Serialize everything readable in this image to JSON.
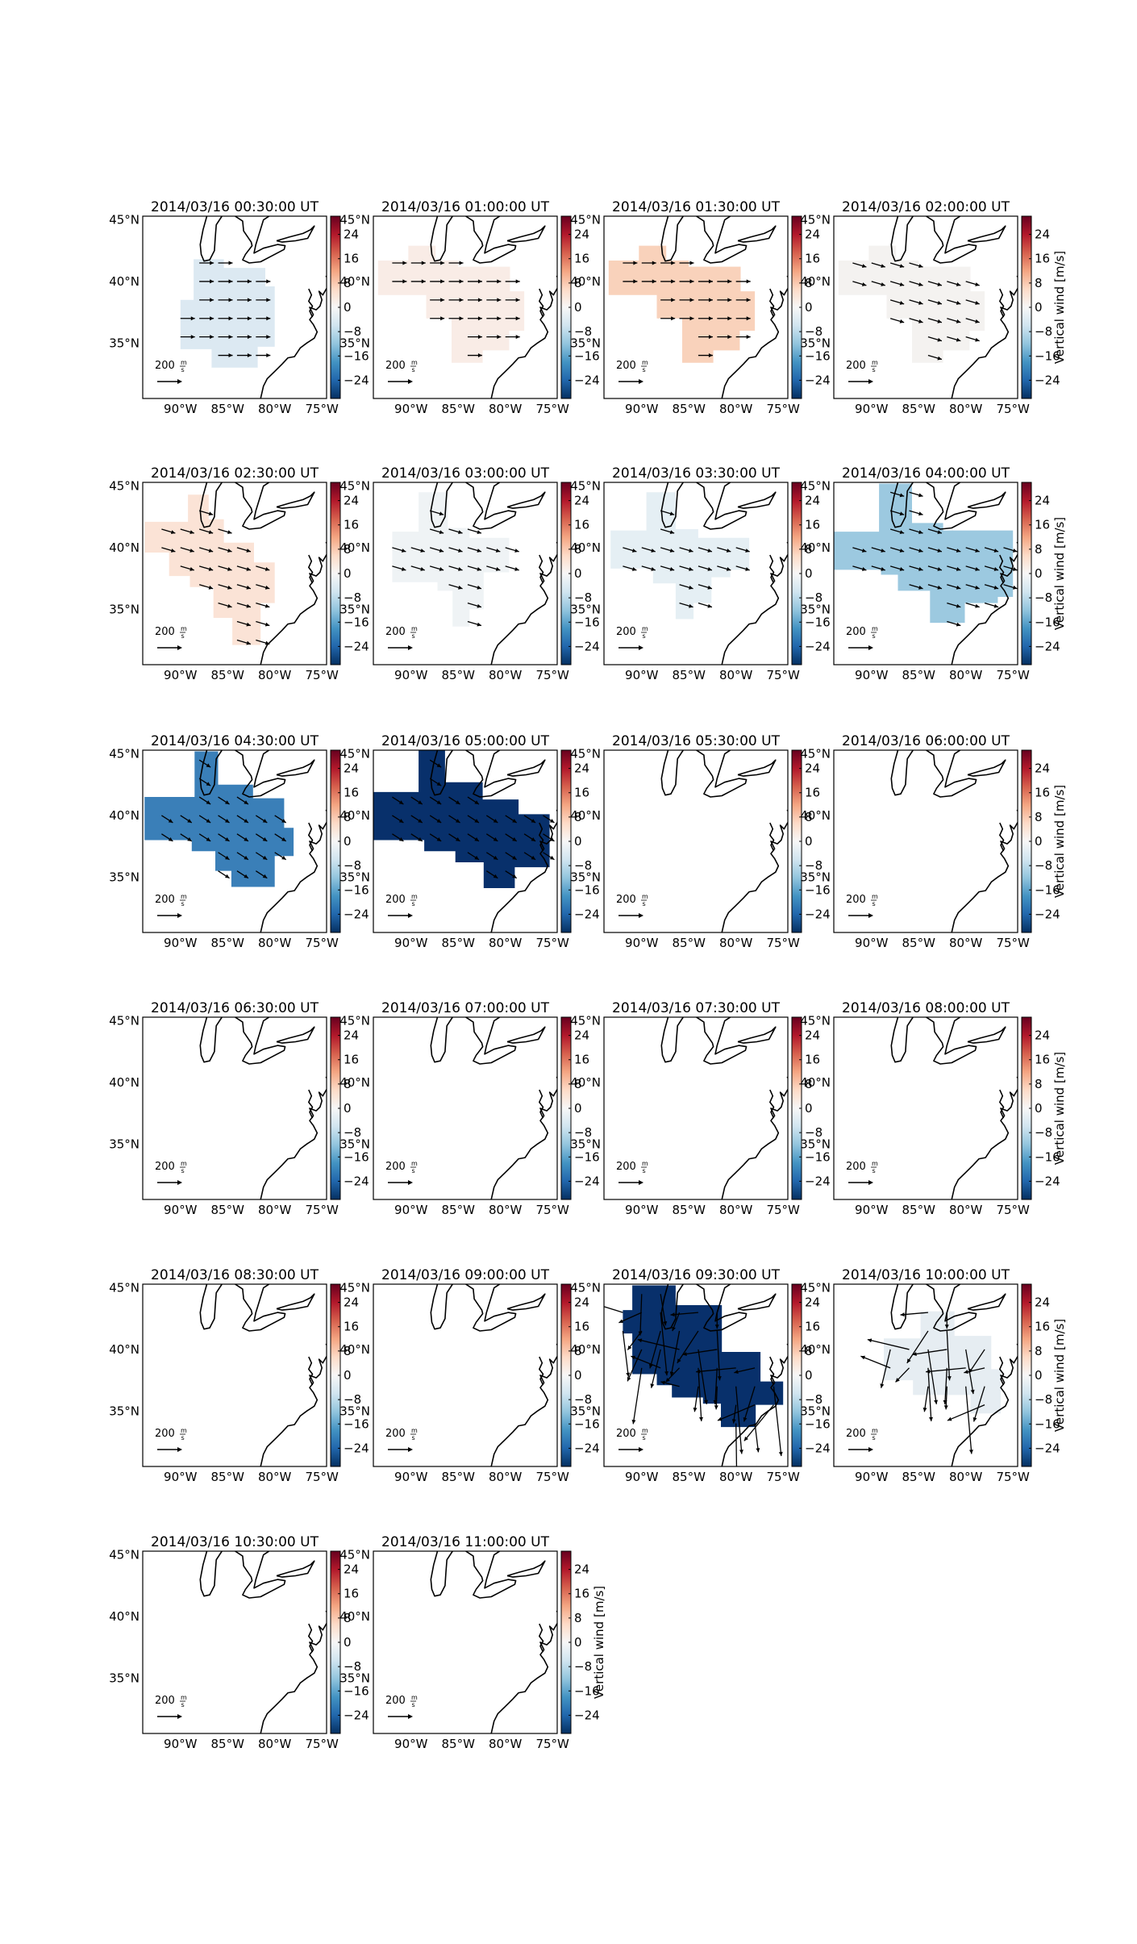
{
  "figure": {
    "colorbar_label": "Vertical wind [m/s]",
    "colorbar_ticks": [
      "24",
      "16",
      "8",
      "0",
      "−8",
      "−16",
      "−24"
    ],
    "colorbar_tick_values": [
      24,
      16,
      8,
      0,
      -8,
      -16,
      -24
    ],
    "colorbar_range": [
      -30,
      30
    ],
    "colormap": [
      "#053061",
      "#2166ac",
      "#4393c3",
      "#92c5de",
      "#d1e5f0",
      "#f7f7f7",
      "#fddbc7",
      "#f4a582",
      "#d6604d",
      "#b2182b",
      "#67001f"
    ],
    "lat_labels": [
      "45°N",
      "40°N",
      "35°N"
    ],
    "lon_labels": [
      "90°W",
      "85°W",
      "80°W",
      "75°W"
    ],
    "scale_label": "200",
    "scale_unit_num": "m",
    "scale_unit_den": "s"
  },
  "panels": [
    {
      "title": "2014/03/16 00:30:00 UT",
      "fill": "#dce9f2",
      "region": "a",
      "arrows": "east",
      "side_ticks": true
    },
    {
      "title": "2014/03/16 01:00:00 UT",
      "fill": "#f9ece6",
      "region": "b",
      "arrows": "east",
      "side_ticks": false
    },
    {
      "title": "2014/03/16 01:30:00 UT",
      "fill": "#f9d2bb",
      "region": "b",
      "arrows": "east",
      "side_ticks": false
    },
    {
      "title": "2014/03/16 02:00:00 UT",
      "fill": "#f4f2f0",
      "region": "b",
      "arrows": "ese",
      "side_ticks": false
    },
    {
      "title": "2014/03/16 02:30:00 UT",
      "fill": "#fbe3d6",
      "region": "c",
      "arrows": "ese",
      "side_ticks": true
    },
    {
      "title": "2014/03/16 03:00:00 UT",
      "fill": "#eff3f5",
      "region": "d",
      "arrows": "ese",
      "side_ticks": false
    },
    {
      "title": "2014/03/16 03:30:00 UT",
      "fill": "#e5eff4",
      "region": "e",
      "arrows": "ese",
      "side_ticks": false
    },
    {
      "title": "2014/03/16 04:00:00 UT",
      "fill": "#9cc9e0",
      "region": "f",
      "arrows": "ese",
      "side_ticks": false
    },
    {
      "title": "2014/03/16 04:30:00 UT",
      "fill": "#3a7fb8",
      "region": "g",
      "arrows": "se",
      "side_ticks": true
    },
    {
      "title": "2014/03/16 05:00:00 UT",
      "fill": "#08306b",
      "region": "h",
      "arrows": "se",
      "side_ticks": false
    },
    {
      "title": "2014/03/16 05:30:00 UT",
      "fill": "",
      "region": "",
      "arrows": "",
      "side_ticks": false
    },
    {
      "title": "2014/03/16 06:00:00 UT",
      "fill": "",
      "region": "",
      "arrows": "",
      "side_ticks": false
    },
    {
      "title": "2014/03/16 06:30:00 UT",
      "fill": "",
      "region": "",
      "arrows": "",
      "side_ticks": true
    },
    {
      "title": "2014/03/16 07:00:00 UT",
      "fill": "",
      "region": "",
      "arrows": "",
      "side_ticks": false
    },
    {
      "title": "2014/03/16 07:30:00 UT",
      "fill": "",
      "region": "",
      "arrows": "",
      "side_ticks": false
    },
    {
      "title": "2014/03/16 08:00:00 UT",
      "fill": "",
      "region": "",
      "arrows": "",
      "side_ticks": false
    },
    {
      "title": "2014/03/16 08:30:00 UT",
      "fill": "",
      "region": "",
      "arrows": "",
      "side_ticks": true
    },
    {
      "title": "2014/03/16 09:00:00 UT",
      "fill": "",
      "region": "",
      "arrows": "",
      "side_ticks": false
    },
    {
      "title": "2014/03/16 09:30:00 UT",
      "fill": "#08306b",
      "region": "i",
      "arrows": "wild",
      "side_ticks": false
    },
    {
      "title": "2014/03/16 10:00:00 UT",
      "fill": "#e6edf2",
      "region": "j",
      "arrows": "wild",
      "side_ticks": false
    },
    {
      "title": "2014/03/16 10:30:00 UT",
      "fill": "",
      "region": "",
      "arrows": "",
      "side_ticks": true
    },
    {
      "title": "2014/03/16 11:00:00 UT",
      "fill": "",
      "region": "",
      "arrows": "",
      "side_ticks": false
    }
  ]
}
